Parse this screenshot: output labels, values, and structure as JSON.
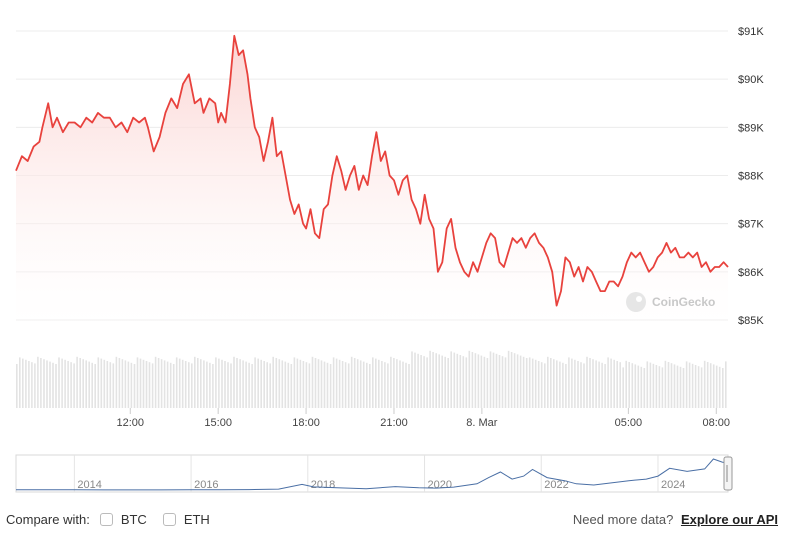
{
  "chart_data": {
    "type": "area",
    "y_axis_side": "right",
    "ylim": [
      84900,
      91300
    ],
    "yticks": [
      85000,
      86000,
      87000,
      88000,
      89000,
      90000,
      91000
    ],
    "ytick_labels": [
      "$85K",
      "$86K",
      "$87K",
      "$88K",
      "$89K",
      "$90K",
      "$91K"
    ],
    "xtick_labels": [
      "12:00",
      "15:00",
      "18:00",
      "21:00",
      "8. Mar",
      "05:00",
      "08:00"
    ],
    "xticks_hours": [
      12,
      15,
      18,
      21,
      24,
      29,
      32
    ],
    "x_range_hours": [
      8.1,
      32.4
    ],
    "series": [
      {
        "color": "#e8423d",
        "points": [
          [
            8.1,
            88100
          ],
          [
            8.3,
            88400
          ],
          [
            8.5,
            88300
          ],
          [
            8.7,
            88600
          ],
          [
            8.9,
            88700
          ],
          [
            9.0,
            89000
          ],
          [
            9.2,
            89500
          ],
          [
            9.35,
            89000
          ],
          [
            9.5,
            89200
          ],
          [
            9.7,
            88900
          ],
          [
            9.9,
            89100
          ],
          [
            10.1,
            89100
          ],
          [
            10.3,
            89000
          ],
          [
            10.5,
            89200
          ],
          [
            10.7,
            89100
          ],
          [
            10.9,
            89300
          ],
          [
            11.1,
            89200
          ],
          [
            11.3,
            89200
          ],
          [
            11.5,
            89000
          ],
          [
            11.7,
            89100
          ],
          [
            11.9,
            88900
          ],
          [
            12.1,
            89200
          ],
          [
            12.3,
            89100
          ],
          [
            12.5,
            89200
          ],
          [
            12.6,
            89000
          ],
          [
            12.8,
            88500
          ],
          [
            13.0,
            88800
          ],
          [
            13.2,
            89300
          ],
          [
            13.4,
            89600
          ],
          [
            13.6,
            89400
          ],
          [
            13.8,
            89900
          ],
          [
            14.0,
            90100
          ],
          [
            14.2,
            89500
          ],
          [
            14.4,
            89600
          ],
          [
            14.5,
            89300
          ],
          [
            14.7,
            89600
          ],
          [
            14.9,
            89500
          ],
          [
            15.0,
            89100
          ],
          [
            15.1,
            89300
          ],
          [
            15.25,
            89100
          ],
          [
            15.4,
            89900
          ],
          [
            15.55,
            90900
          ],
          [
            15.7,
            90500
          ],
          [
            15.85,
            90600
          ],
          [
            16.0,
            90100
          ],
          [
            16.1,
            89600
          ],
          [
            16.25,
            89000
          ],
          [
            16.4,
            88800
          ],
          [
            16.55,
            88300
          ],
          [
            16.7,
            88700
          ],
          [
            16.85,
            89200
          ],
          [
            17.0,
            88400
          ],
          [
            17.15,
            88500
          ],
          [
            17.3,
            88000
          ],
          [
            17.45,
            87500
          ],
          [
            17.6,
            87200
          ],
          [
            17.75,
            87400
          ],
          [
            17.9,
            87000
          ],
          [
            18.0,
            86900
          ],
          [
            18.15,
            87300
          ],
          [
            18.3,
            86800
          ],
          [
            18.45,
            86700
          ],
          [
            18.6,
            87300
          ],
          [
            18.75,
            87400
          ],
          [
            18.9,
            88000
          ],
          [
            19.05,
            88400
          ],
          [
            19.2,
            88100
          ],
          [
            19.35,
            87700
          ],
          [
            19.5,
            88000
          ],
          [
            19.65,
            88200
          ],
          [
            19.8,
            87700
          ],
          [
            19.95,
            88000
          ],
          [
            20.1,
            87800
          ],
          [
            20.25,
            88400
          ],
          [
            20.4,
            88900
          ],
          [
            20.55,
            88300
          ],
          [
            20.7,
            88500
          ],
          [
            20.85,
            88000
          ],
          [
            21.0,
            87900
          ],
          [
            21.15,
            87600
          ],
          [
            21.3,
            87900
          ],
          [
            21.45,
            88000
          ],
          [
            21.6,
            87500
          ],
          [
            21.75,
            87300
          ],
          [
            21.9,
            87000
          ],
          [
            22.05,
            87600
          ],
          [
            22.2,
            87100
          ],
          [
            22.35,
            86900
          ],
          [
            22.5,
            86000
          ],
          [
            22.65,
            86200
          ],
          [
            22.8,
            86900
          ],
          [
            22.95,
            87100
          ],
          [
            23.1,
            86500
          ],
          [
            23.25,
            86200
          ],
          [
            23.4,
            86000
          ],
          [
            23.55,
            85900
          ],
          [
            23.7,
            86200
          ],
          [
            23.85,
            86000
          ],
          [
            24.0,
            86300
          ],
          [
            24.15,
            86600
          ],
          [
            24.3,
            86800
          ],
          [
            24.45,
            86700
          ],
          [
            24.6,
            86200
          ],
          [
            24.75,
            86100
          ],
          [
            24.9,
            86400
          ],
          [
            25.05,
            86700
          ],
          [
            25.2,
            86600
          ],
          [
            25.35,
            86700
          ],
          [
            25.5,
            86500
          ],
          [
            25.65,
            86700
          ],
          [
            25.8,
            86800
          ],
          [
            25.95,
            86600
          ],
          [
            26.1,
            86500
          ],
          [
            26.25,
            86300
          ],
          [
            26.4,
            86000
          ],
          [
            26.55,
            85300
          ],
          [
            26.7,
            85600
          ],
          [
            26.85,
            86300
          ],
          [
            27.0,
            86200
          ],
          [
            27.15,
            85900
          ],
          [
            27.3,
            86100
          ],
          [
            27.45,
            85800
          ],
          [
            27.6,
            86100
          ],
          [
            27.75,
            86000
          ],
          [
            27.9,
            85800
          ],
          [
            28.05,
            85600
          ],
          [
            28.2,
            85600
          ],
          [
            28.35,
            85800
          ],
          [
            28.5,
            85800
          ],
          [
            28.65,
            85700
          ],
          [
            28.8,
            85900
          ],
          [
            28.95,
            86200
          ],
          [
            29.1,
            86400
          ],
          [
            29.25,
            86300
          ],
          [
            29.4,
            86400
          ],
          [
            29.55,
            86200
          ],
          [
            29.7,
            86000
          ],
          [
            29.85,
            86100
          ],
          [
            30.0,
            86300
          ],
          [
            30.15,
            86400
          ],
          [
            30.3,
            86600
          ],
          [
            30.45,
            86400
          ],
          [
            30.6,
            86500
          ],
          [
            30.75,
            86300
          ],
          [
            30.9,
            86300
          ],
          [
            31.05,
            86400
          ],
          [
            31.2,
            86300
          ],
          [
            31.35,
            86400
          ],
          [
            31.5,
            86100
          ],
          [
            31.65,
            86200
          ],
          [
            31.8,
            86000
          ],
          [
            31.95,
            86100
          ],
          [
            32.1,
            86100
          ],
          [
            32.25,
            86200
          ],
          [
            32.4,
            86100
          ]
        ]
      }
    ],
    "navigator": {
      "year_labels": [
        "2014",
        "2016",
        "2018",
        "2020",
        "2022",
        "2024"
      ],
      "year_range": [
        2013.0,
        2025.2
      ],
      "line_color": "#4a6fa5",
      "points": [
        [
          2013.0,
          0.5
        ],
        [
          2013.5,
          0.5
        ],
        [
          2014.0,
          0.6
        ],
        [
          2014.5,
          0.4
        ],
        [
          2015.0,
          0.3
        ],
        [
          2015.5,
          0.3
        ],
        [
          2016.0,
          0.5
        ],
        [
          2016.5,
          0.8
        ],
        [
          2017.0,
          1.2
        ],
        [
          2017.5,
          3.0
        ],
        [
          2017.9,
          18.0
        ],
        [
          2018.1,
          10.0
        ],
        [
          2018.5,
          7.0
        ],
        [
          2019.0,
          4.0
        ],
        [
          2019.5,
          11.0
        ],
        [
          2019.9,
          7.5
        ],
        [
          2020.2,
          6.0
        ],
        [
          2020.5,
          9.5
        ],
        [
          2020.9,
          20.0
        ],
        [
          2021.1,
          40.0
        ],
        [
          2021.3,
          58.0
        ],
        [
          2021.5,
          35.0
        ],
        [
          2021.7,
          45.0
        ],
        [
          2021.85,
          66.0
        ],
        [
          2022.1,
          40.0
        ],
        [
          2022.4,
          30.0
        ],
        [
          2022.6,
          20.0
        ],
        [
          2022.9,
          16.0
        ],
        [
          2023.2,
          23.0
        ],
        [
          2023.5,
          30.0
        ],
        [
          2023.8,
          35.0
        ],
        [
          2024.0,
          45.0
        ],
        [
          2024.2,
          70.0
        ],
        [
          2024.5,
          60.0
        ],
        [
          2024.8,
          68.0
        ],
        [
          2024.95,
          100.0
        ],
        [
          2025.1,
          90.0
        ],
        [
          2025.2,
          86.0
        ]
      ]
    },
    "grid": true,
    "colors": {
      "line": "#e8423d",
      "fill_top": "#fbd2d0",
      "fill_bottom": "#ffffff",
      "volume": "#e3e3e3"
    }
  },
  "watermark": "CoinGecko",
  "footer": {
    "compare_label": "Compare with:",
    "options": [
      "BTC",
      "ETH"
    ],
    "need_more": "Need more data?",
    "api_link": "Explore our API"
  }
}
